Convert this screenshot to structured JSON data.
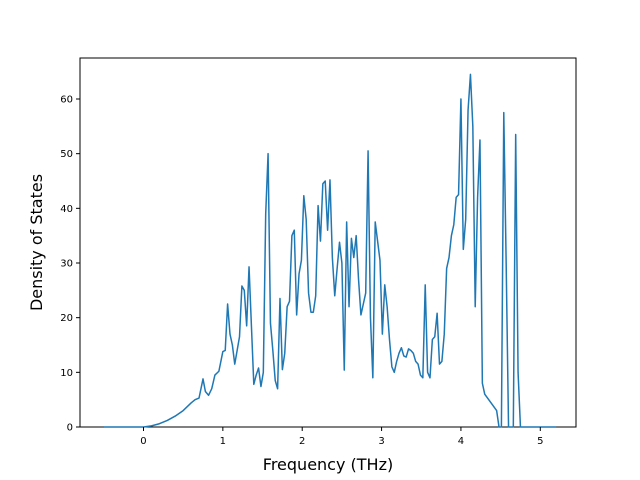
{
  "chart_data": {
    "type": "line",
    "title": "",
    "xlabel": "Frequency (THz)",
    "ylabel": "Density of States",
    "xlim": [
      -0.8,
      5.45
    ],
    "ylim": [
      0,
      67.5
    ],
    "xticks": [
      0,
      1,
      2,
      3,
      4,
      5
    ],
    "yticks": [
      0,
      10,
      20,
      30,
      40,
      50,
      60
    ],
    "grid": false,
    "legend": "none",
    "series": [
      {
        "color": "#1f77b4",
        "x": [
          -0.5,
          -0.2,
          0.0,
          0.1,
          0.2,
          0.3,
          0.4,
          0.5,
          0.6,
          0.65,
          0.7,
          0.75,
          0.78,
          0.82,
          0.86,
          0.9,
          0.95,
          1.0,
          1.03,
          1.06,
          1.09,
          1.12,
          1.15,
          1.18,
          1.21,
          1.24,
          1.27,
          1.3,
          1.33,
          1.36,
          1.39,
          1.42,
          1.45,
          1.48,
          1.51,
          1.54,
          1.57,
          1.6,
          1.63,
          1.66,
          1.69,
          1.72,
          1.75,
          1.78,
          1.81,
          1.84,
          1.87,
          1.9,
          1.93,
          1.96,
          1.99,
          2.02,
          2.05,
          2.08,
          2.11,
          2.14,
          2.17,
          2.2,
          2.23,
          2.26,
          2.29,
          2.32,
          2.35,
          2.38,
          2.41,
          2.44,
          2.47,
          2.5,
          2.53,
          2.56,
          2.59,
          2.62,
          2.65,
          2.68,
          2.71,
          2.74,
          2.77,
          2.8,
          2.83,
          2.86,
          2.89,
          2.92,
          2.95,
          2.98,
          3.01,
          3.04,
          3.07,
          3.1,
          3.13,
          3.16,
          3.19,
          3.22,
          3.25,
          3.28,
          3.31,
          3.34,
          3.37,
          3.4,
          3.43,
          3.46,
          3.49,
          3.52,
          3.55,
          3.58,
          3.61,
          3.64,
          3.67,
          3.7,
          3.73,
          3.76,
          3.79,
          3.82,
          3.85,
          3.88,
          3.91,
          3.94,
          3.97,
          4.0,
          4.03,
          4.06,
          4.09,
          4.12,
          4.15,
          4.18,
          4.21,
          4.24,
          4.27,
          4.3,
          4.45,
          4.48,
          4.51,
          4.54,
          4.57,
          4.6,
          4.63,
          4.66,
          4.69,
          4.72,
          4.75,
          4.8,
          5.0,
          5.2
        ],
        "y": [
          0,
          0,
          0,
          0.2,
          0.6,
          1.2,
          2.0,
          3.0,
          4.4,
          5.0,
          5.3,
          8.8,
          6.5,
          5.8,
          7.0,
          9.5,
          10.2,
          13.8,
          14.0,
          22.5,
          17.0,
          15.0,
          11.5,
          14.0,
          16.5,
          25.8,
          25.0,
          18.5,
          29.3,
          18.5,
          7.8,
          9.5,
          10.8,
          7.4,
          10.0,
          39.0,
          50.0,
          19.0,
          14.0,
          8.5,
          7.0,
          23.5,
          10.5,
          13.5,
          22.0,
          23.0,
          35.0,
          36.0,
          20.5,
          28.0,
          30.5,
          42.3,
          38.0,
          24.5,
          21.0,
          21.0,
          24.0,
          40.5,
          34.0,
          44.5,
          45.0,
          36.0,
          45.2,
          31.0,
          24.0,
          29.0,
          33.8,
          30.0,
          10.4,
          37.5,
          22.0,
          34.5,
          31.0,
          35.0,
          27.0,
          20.5,
          22.5,
          24.5,
          50.5,
          20.0,
          9.0,
          37.5,
          34.0,
          30.5,
          17.0,
          26.0,
          22.0,
          16.0,
          11.0,
          10.0,
          12.0,
          13.5,
          14.5,
          13.0,
          12.8,
          14.3,
          14.0,
          13.5,
          12.0,
          11.5,
          9.5,
          9.0,
          26.0,
          10.0,
          9.0,
          16.0,
          16.5,
          20.8,
          11.5,
          12.0,
          17.0,
          29.0,
          31.0,
          35.0,
          37.0,
          42.0,
          42.5,
          60.0,
          32.5,
          38.0,
          58.0,
          64.5,
          55.0,
          22.0,
          42.0,
          52.5,
          8.0,
          6.0,
          3.0,
          0,
          0,
          57.5,
          30.0,
          0,
          0,
          0,
          53.5,
          10.0,
          0,
          0,
          0,
          0
        ]
      }
    ]
  }
}
